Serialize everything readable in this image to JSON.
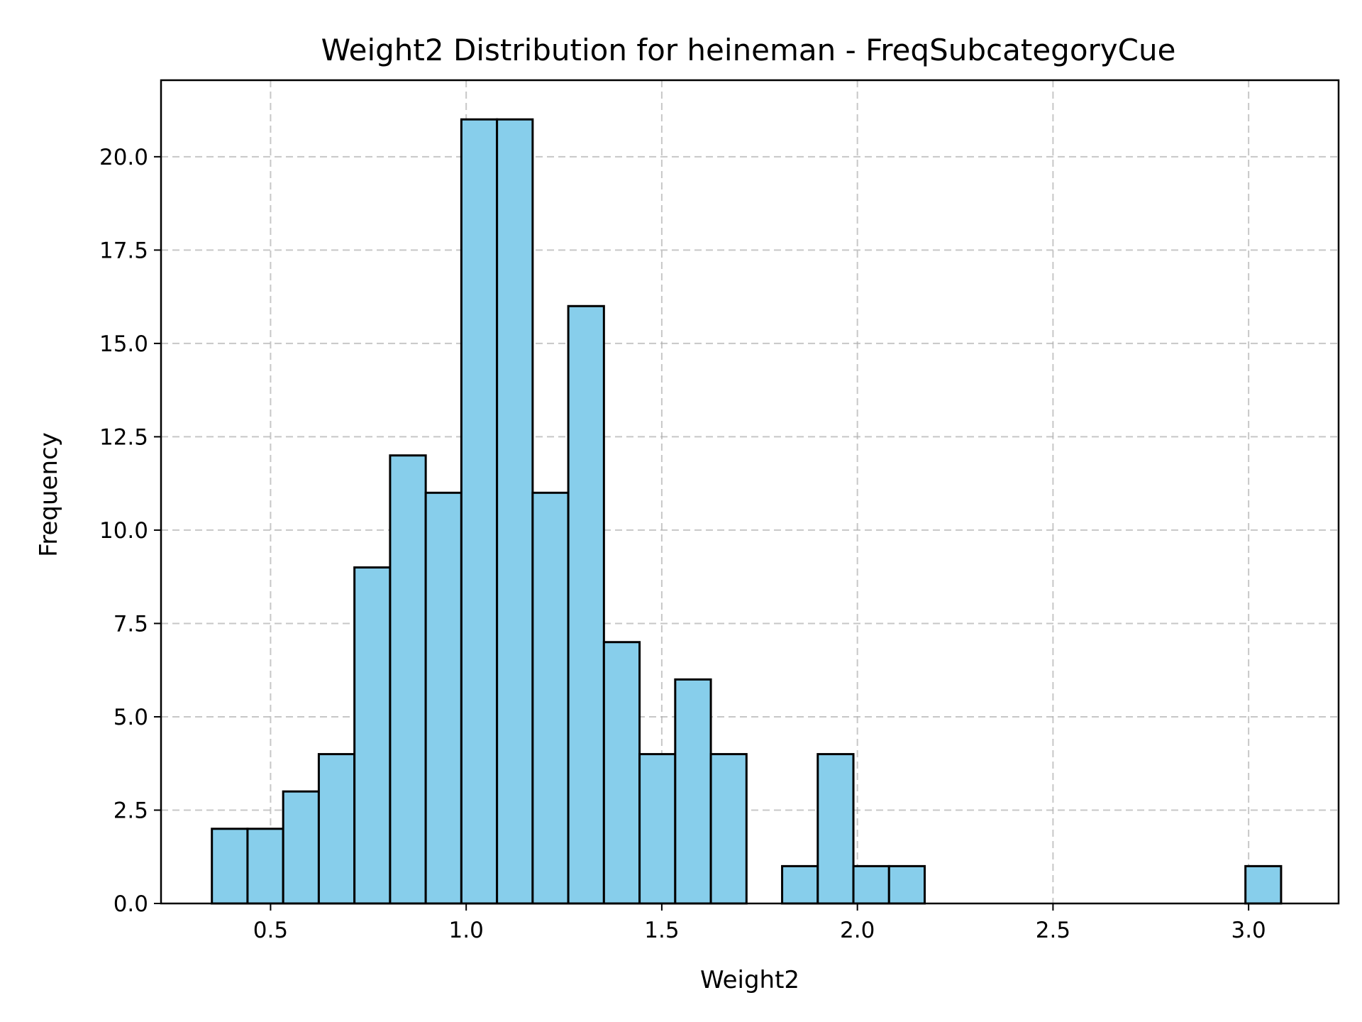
{
  "chart_data": {
    "type": "bar",
    "title": "Weight2 Distribution for heineman - FreqSubcategoryCue",
    "xlabel": "Weight2",
    "ylabel": "Frequency",
    "xlim": [
      0.22,
      3.23
    ],
    "ylim": [
      0,
      22.05
    ],
    "grid": true,
    "x_ticks": [
      0.5,
      1.0,
      1.5,
      2.0,
      2.5,
      3.0
    ],
    "x_tick_labels": [
      "0.5",
      "1.0",
      "1.5",
      "2.0",
      "2.5",
      "3.0"
    ],
    "y_ticks": [
      0,
      2.5,
      5,
      7.5,
      10,
      12.5,
      15,
      17.5,
      20
    ],
    "y_tick_labels": [
      "0.0",
      "2.5",
      "5.0",
      "7.5",
      "10.0",
      "12.5",
      "15.0",
      "17.5",
      "20.0"
    ],
    "bin_start": 0.35,
    "bin_width": 0.0911,
    "values": [
      2,
      2,
      3,
      4,
      9,
      12,
      11,
      21,
      21,
      11,
      16,
      7,
      4,
      6,
      4,
      0,
      1,
      4,
      1,
      1,
      0,
      0,
      0,
      0,
      0,
      0,
      0,
      0,
      0,
      1
    ],
    "colors": {
      "bar_fill": "#87ceeb",
      "bar_edge": "#000000"
    }
  }
}
